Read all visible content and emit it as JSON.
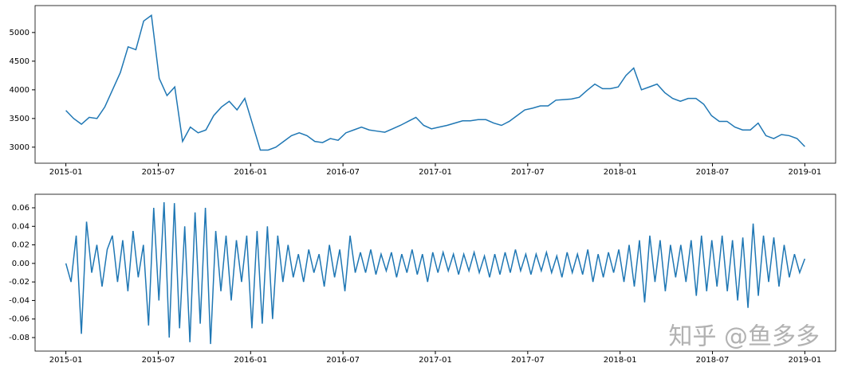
{
  "chart_data": [
    {
      "type": "line",
      "color": "#1f77b4",
      "xlim": [
        "2014-11",
        "2019-03"
      ],
      "xticks": [
        "2015-01",
        "2015-07",
        "2016-01",
        "2016-07",
        "2017-01",
        "2017-07",
        "2018-01",
        "2018-07",
        "2019-01"
      ],
      "ylim": [
        2720,
        5470
      ],
      "yticks": [
        3000,
        3500,
        4000,
        4500,
        5000
      ],
      "values": [
        3640,
        3500,
        3400,
        3520,
        3500,
        3700,
        4000,
        4300,
        4750,
        4700,
        5200,
        5300,
        4200,
        3900,
        4050,
        3100,
        3350,
        3250,
        3300,
        3550,
        3700,
        3800,
        3650,
        3850,
        3400,
        2950,
        2950,
        3000,
        3100,
        3200,
        3250,
        3200,
        3100,
        3080,
        3150,
        3120,
        3250,
        3300,
        3350,
        3300,
        3280,
        3260,
        3320,
        3380,
        3450,
        3520,
        3380,
        3320,
        3350,
        3380,
        3420,
        3460,
        3460,
        3480,
        3480,
        3420,
        3380,
        3450,
        3550,
        3650,
        3680,
        3720,
        3720,
        3820,
        3830,
        3840,
        3870,
        3990,
        4100,
        4020,
        4020,
        4050,
        4250,
        4380,
        4000,
        4050,
        4100,
        3950,
        3850,
        3800,
        3850,
        3850,
        3750,
        3550,
        3450,
        3450,
        3350,
        3300,
        3300,
        3420,
        3200,
        3150,
        3220,
        3200,
        3150,
        3010
      ]
    },
    {
      "type": "line",
      "color": "#1f77b4",
      "xlim": [
        "2014-11",
        "2019-03"
      ],
      "xticks": [
        "2015-01",
        "2015-07",
        "2016-01",
        "2016-07",
        "2017-01",
        "2017-07",
        "2018-01",
        "2018-07",
        "2019-01"
      ],
      "ylim": [
        -0.0946,
        0.0746
      ],
      "yticks": [
        {
          "value": -0.08,
          "label": "-0.08"
        },
        {
          "value": -0.06,
          "label": "-0.06"
        },
        {
          "value": -0.04,
          "label": "-0.04"
        },
        {
          "value": -0.02,
          "label": "-0.02"
        },
        {
          "value": 0,
          "label": "0.00"
        },
        {
          "value": 0.02,
          "label": "0.02"
        },
        {
          "value": 0.04,
          "label": "0.04"
        },
        {
          "value": 0.06,
          "label": "0.06"
        }
      ],
      "values": [
        0.0,
        -0.02,
        0.03,
        -0.076,
        0.045,
        -0.01,
        0.02,
        -0.025,
        0.015,
        0.03,
        -0.02,
        0.025,
        -0.03,
        0.035,
        -0.015,
        0.02,
        -0.067,
        0.06,
        -0.04,
        0.066,
        -0.08,
        0.065,
        -0.07,
        0.04,
        -0.085,
        0.055,
        -0.065,
        0.06,
        -0.087,
        0.035,
        -0.03,
        0.03,
        -0.04,
        0.025,
        -0.02,
        0.03,
        -0.07,
        0.035,
        -0.065,
        0.04,
        -0.06,
        0.03,
        -0.02,
        0.02,
        -0.015,
        0.01,
        -0.02,
        0.015,
        -0.01,
        0.01,
        -0.025,
        0.02,
        -0.015,
        0.015,
        -0.03,
        0.03,
        -0.01,
        0.012,
        -0.01,
        0.015,
        -0.012,
        0.01,
        -0.008,
        0.012,
        -0.015,
        0.01,
        -0.01,
        0.015,
        -0.012,
        0.01,
        -0.02,
        0.012,
        -0.01,
        0.012,
        -0.008,
        0.01,
        -0.012,
        0.01,
        -0.008,
        0.012,
        -0.01,
        0.008,
        -0.015,
        0.01,
        -0.012,
        0.012,
        -0.01,
        0.015,
        -0.008,
        0.01,
        -0.012,
        0.01,
        -0.008,
        0.012,
        -0.01,
        0.008,
        -0.015,
        0.012,
        -0.01,
        0.01,
        -0.012,
        0.015,
        -0.02,
        0.01,
        -0.015,
        0.012,
        -0.01,
        0.015,
        -0.02,
        0.02,
        -0.025,
        0.025,
        -0.042,
        0.03,
        -0.02,
        0.025,
        -0.03,
        0.02,
        -0.015,
        0.02,
        -0.02,
        0.025,
        -0.035,
        0.03,
        -0.03,
        0.025,
        -0.025,
        0.03,
        -0.03,
        0.025,
        -0.04,
        0.028,
        -0.048,
        0.043,
        -0.035,
        0.03,
        -0.02,
        0.028,
        -0.025,
        0.02,
        -0.015,
        0.01,
        -0.01,
        0.005
      ]
    }
  ],
  "watermark": "知乎 @鱼多多"
}
